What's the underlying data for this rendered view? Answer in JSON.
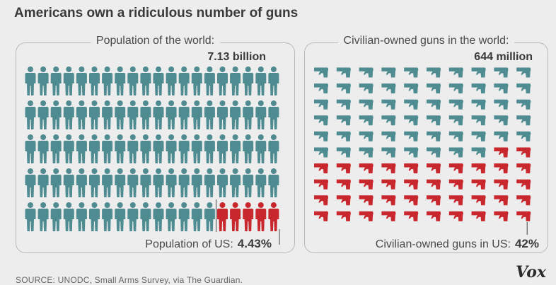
{
  "title": "Americans own a ridiculous number of guns",
  "chart_data": [
    {
      "type": "pictogram",
      "label": "Population of the world:",
      "total": "7.13 billion",
      "highlight_label": "Population of US:",
      "highlight_value": "4.43%",
      "icon": "person-icon",
      "rows": 5,
      "cols": 20,
      "highlighted_icons": 5,
      "colors": {
        "base": "#4e8c91",
        "highlight": "#c8272e"
      }
    },
    {
      "type": "pictogram",
      "label": "Civilian-owned guns in the world:",
      "total": "644 million",
      "highlight_label": "Civilian-owned guns in US:",
      "highlight_value": "42%",
      "icon": "handgun-icon",
      "rows": 10,
      "cols": 10,
      "highlighted_icons": 42,
      "colors": {
        "base": "#4e8c91",
        "highlight": "#c8272e"
      }
    }
  ],
  "source": "SOURCE: UNODC, Small Arms Survey, via The Guardian.",
  "brand": "Vox"
}
